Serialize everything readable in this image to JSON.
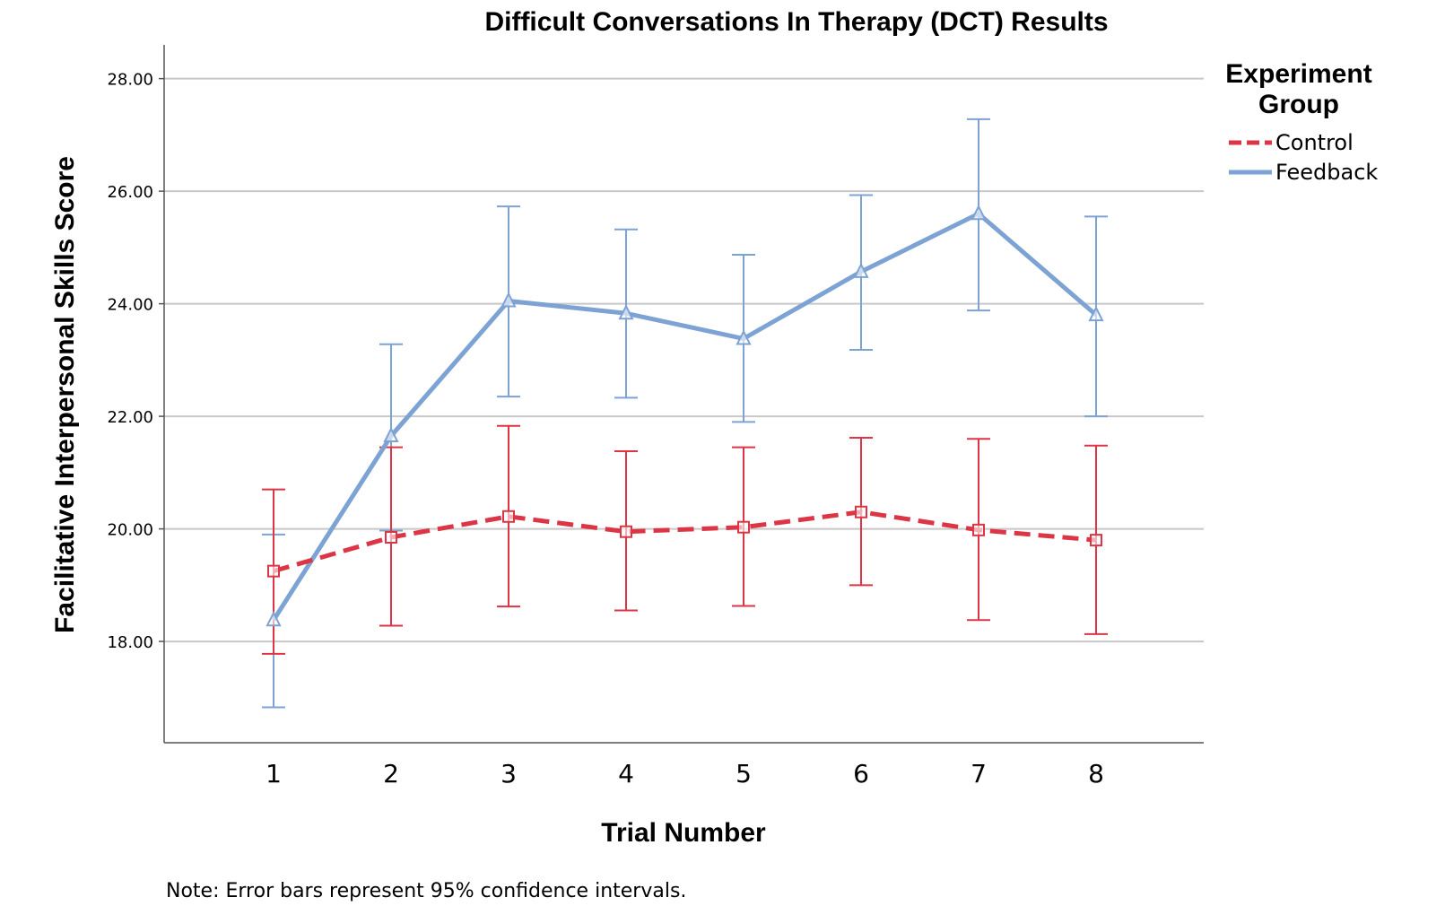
{
  "chart_data": {
    "type": "line",
    "title": "Difficult Conversations In Therapy (DCT) Results",
    "xlabel": "Trial Number",
    "ylabel": "Facilitative Interpersonal Skills Score",
    "x": [
      "1",
      "2",
      "3",
      "4",
      "5",
      "6",
      "7",
      "8"
    ],
    "yticks": [
      "18.00",
      "20.00",
      "22.00",
      "24.00",
      "26.00",
      "28.00"
    ],
    "ylim": [
      16.2,
      28.6
    ],
    "grid": true,
    "legend": {
      "title_line1": "Experiment",
      "title_line2": "Group",
      "placement": "right"
    },
    "series": [
      {
        "name": "Control",
        "color": "#dc3545",
        "line_style": "dashed",
        "marker": "square",
        "values": [
          19.25,
          19.85,
          20.22,
          19.95,
          20.03,
          20.3,
          19.98,
          19.8
        ],
        "ci_lower": [
          17.78,
          18.28,
          18.62,
          18.55,
          18.63,
          19.0,
          18.38,
          18.13
        ],
        "ci_upper": [
          20.7,
          21.45,
          21.83,
          21.38,
          21.45,
          21.62,
          21.6,
          21.48
        ]
      },
      {
        "name": "Feedback",
        "color": "#7da2d4",
        "line_style": "solid",
        "marker": "triangle",
        "values": [
          18.38,
          21.65,
          24.05,
          23.83,
          23.38,
          24.57,
          25.6,
          23.8
        ],
        "ci_lower": [
          16.83,
          19.97,
          22.35,
          22.33,
          21.9,
          23.18,
          23.88,
          22.0
        ],
        "ci_upper": [
          19.9,
          23.28,
          25.73,
          25.32,
          24.87,
          25.93,
          27.28,
          25.55
        ]
      }
    ]
  },
  "note": "Note: Error bars represent 95% confidence intervals."
}
